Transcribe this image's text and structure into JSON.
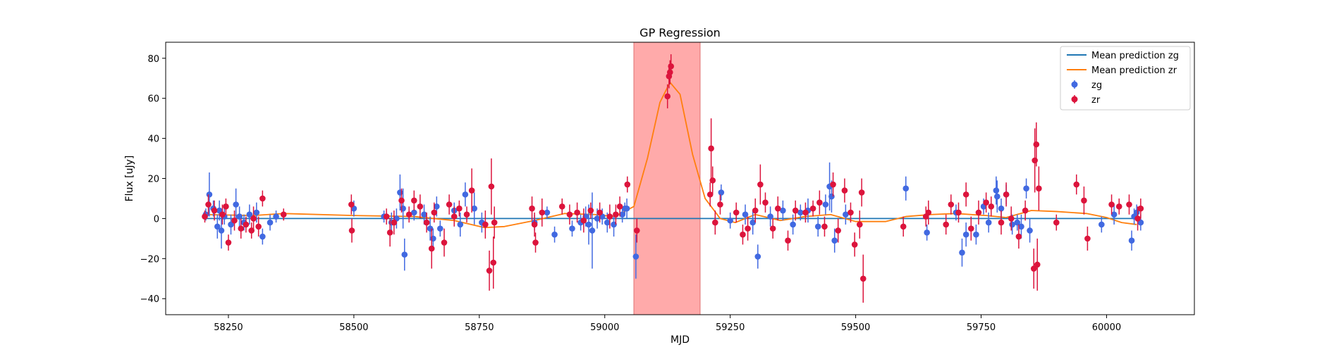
{
  "chart_data": {
    "type": "scatter",
    "title": "GP Regression",
    "xlabel": "MJD",
    "ylabel": "Flux [uJy]",
    "xlim": [
      58125,
      60175
    ],
    "ylim": [
      -48,
      88
    ],
    "xticks": [
      58250,
      58500,
      58750,
      59000,
      59250,
      59500,
      59750,
      60000
    ],
    "yticks": [
      -40,
      -20,
      0,
      20,
      40,
      60,
      80
    ],
    "grid": false,
    "legend_position": "top-right",
    "highlight_span": {
      "x": [
        59058,
        59190
      ],
      "color": "#ffaaaa"
    },
    "series": [
      {
        "name": "Mean prediction zg",
        "kind": "line",
        "color": "#1f77b4",
        "x": [
          58200,
          60060
        ],
        "y": [
          0,
          0
        ]
      },
      {
        "name": "Mean prediction zr",
        "kind": "line",
        "color": "#ff7f0e",
        "x": [
          58200,
          58300,
          58360,
          58500,
          58620,
          58700,
          58760,
          58800,
          58860,
          58920,
          58980,
          59020,
          59058,
          59085,
          59110,
          59130,
          59150,
          59175,
          59200,
          59230,
          59260,
          59300,
          59350,
          59400,
          59450,
          59500,
          59560,
          59600,
          59650,
          59700,
          59760,
          59800,
          59850,
          59900,
          59960,
          60000,
          60030,
          60060
        ],
        "y": [
          2.0,
          1.5,
          2.5,
          1.5,
          1.0,
          -1.0,
          -4.5,
          -4.0,
          -1.0,
          2.5,
          2.0,
          1.0,
          6.0,
          30.0,
          58.0,
          68.0,
          62.0,
          32.0,
          10.0,
          0.0,
          -2.0,
          2.0,
          -1.0,
          1.0,
          2.0,
          -1.5,
          -1.5,
          1.0,
          2.0,
          2.5,
          1.5,
          0.5,
          4.0,
          3.5,
          2.5,
          0.5,
          -2.0,
          -3.0
        ]
      },
      {
        "name": "zg",
        "kind": "errorbar",
        "color": "#4169e1",
        "points": [
          [
            58205,
            2,
            3
          ],
          [
            58212,
            12,
            11
          ],
          [
            58220,
            5,
            4
          ],
          [
            58228,
            -4,
            6
          ],
          [
            58232,
            4,
            5
          ],
          [
            58236,
            -6,
            9
          ],
          [
            58242,
            1,
            4
          ],
          [
            58255,
            -3,
            5
          ],
          [
            58265,
            7,
            8
          ],
          [
            58272,
            1,
            5
          ],
          [
            58281,
            -2,
            4
          ],
          [
            58292,
            2,
            5
          ],
          [
            58306,
            3,
            5
          ],
          [
            58318,
            -9,
            4
          ],
          [
            58333,
            -2,
            4
          ],
          [
            58345,
            1,
            3
          ],
          [
            58500,
            5,
            4
          ],
          [
            58560,
            1,
            3
          ],
          [
            58575,
            -2,
            5
          ],
          [
            58585,
            0,
            5
          ],
          [
            58592,
            13,
            9
          ],
          [
            58598,
            5,
            10
          ],
          [
            58601,
            -18,
            8
          ],
          [
            58620,
            3,
            4
          ],
          [
            58640,
            2,
            5
          ],
          [
            58652,
            -5,
            6
          ],
          [
            58658,
            -10,
            5
          ],
          [
            58665,
            6,
            5
          ],
          [
            58672,
            -5,
            4
          ],
          [
            58700,
            4,
            4
          ],
          [
            58712,
            -3,
            6
          ],
          [
            58722,
            12,
            6
          ],
          [
            58740,
            5,
            8
          ],
          [
            58755,
            -2,
            5
          ],
          [
            58860,
            -2,
            4
          ],
          [
            58885,
            3,
            3
          ],
          [
            58900,
            -8,
            4
          ],
          [
            58935,
            -5,
            4
          ],
          [
            58952,
            -2,
            4
          ],
          [
            58962,
            1,
            5
          ],
          [
            58968,
            -3,
            10
          ],
          [
            58975,
            -6,
            19
          ],
          [
            58985,
            0,
            5
          ],
          [
            58995,
            1,
            4
          ],
          [
            59005,
            -2,
            5
          ],
          [
            59018,
            -3,
            6
          ],
          [
            59035,
            2,
            4
          ],
          [
            59040,
            5,
            3
          ],
          [
            59044,
            5,
            5
          ],
          [
            59062,
            -19,
            11
          ],
          [
            59232,
            13,
            4
          ],
          [
            59250,
            -1,
            4
          ],
          [
            59280,
            2,
            5
          ],
          [
            59295,
            -2,
            6
          ],
          [
            59305,
            -19,
            6
          ],
          [
            59330,
            1,
            5
          ],
          [
            59355,
            4,
            5
          ],
          [
            59375,
            -3,
            5
          ],
          [
            59390,
            3,
            4
          ],
          [
            59405,
            4,
            6
          ],
          [
            59425,
            -4,
            5
          ],
          [
            59440,
            7,
            5
          ],
          [
            59448,
            16,
            12
          ],
          [
            59452,
            11,
            8
          ],
          [
            59458,
            -11,
            6
          ],
          [
            59480,
            2,
            5
          ],
          [
            59600,
            15,
            6
          ],
          [
            59642,
            -7,
            4
          ],
          [
            59700,
            3,
            4
          ],
          [
            59712,
            -17,
            7
          ],
          [
            59720,
            -8,
            6
          ],
          [
            59740,
            -8,
            5
          ],
          [
            59755,
            6,
            4
          ],
          [
            59765,
            -2,
            5
          ],
          [
            59780,
            14,
            7
          ],
          [
            59782,
            11,
            8
          ],
          [
            59790,
            5,
            5
          ],
          [
            59800,
            12,
            5
          ],
          [
            59812,
            -3,
            5
          ],
          [
            59822,
            -2,
            4
          ],
          [
            59830,
            -4,
            6
          ],
          [
            59840,
            15,
            5
          ],
          [
            59847,
            -6,
            6
          ],
          [
            59990,
            -3,
            4
          ],
          [
            60015,
            2,
            5
          ],
          [
            60050,
            -11,
            5
          ],
          [
            60055,
            1,
            4
          ],
          [
            60060,
            3,
            4
          ],
          [
            60068,
            -2,
            4
          ]
        ]
      },
      {
        "name": "zr",
        "kind": "errorbar",
        "color": "#dc143c",
        "points": [
          [
            58203,
            1,
            3
          ],
          [
            58210,
            7,
            5
          ],
          [
            58222,
            4,
            5
          ],
          [
            58238,
            2,
            5
          ],
          [
            58245,
            6,
            4
          ],
          [
            58250,
            -12,
            4
          ],
          [
            58262,
            -1,
            5
          ],
          [
            58275,
            -5,
            5
          ],
          [
            58285,
            -3,
            4
          ],
          [
            58296,
            -6,
            4
          ],
          [
            58300,
            0,
            6
          ],
          [
            58310,
            -4,
            5
          ],
          [
            58318,
            10,
            4
          ],
          [
            58360,
            2,
            3
          ],
          [
            58495,
            7,
            5
          ],
          [
            58496,
            -6,
            6
          ],
          [
            58565,
            1,
            4
          ],
          [
            58572,
            -7,
            7
          ],
          [
            58580,
            -2,
            6
          ],
          [
            58595,
            9,
            6
          ],
          [
            58610,
            2,
            4
          ],
          [
            58620,
            9,
            5
          ],
          [
            58632,
            6,
            6
          ],
          [
            58645,
            -2,
            5
          ],
          [
            58655,
            -15,
            10
          ],
          [
            58660,
            3,
            5
          ],
          [
            58680,
            -12,
            7
          ],
          [
            58690,
            7,
            5
          ],
          [
            58700,
            1,
            5
          ],
          [
            58710,
            5,
            4
          ],
          [
            58725,
            2,
            4
          ],
          [
            58735,
            14,
            11
          ],
          [
            58762,
            -3,
            7
          ],
          [
            58770,
            -26,
            10
          ],
          [
            58774,
            16,
            14
          ],
          [
            58778,
            -22,
            13
          ],
          [
            58780,
            -2,
            8
          ],
          [
            58855,
            5,
            6
          ],
          [
            58860,
            -3,
            6
          ],
          [
            58862,
            -12,
            5
          ],
          [
            58875,
            3,
            7
          ],
          [
            58915,
            6,
            4
          ],
          [
            58930,
            2,
            5
          ],
          [
            58945,
            3,
            5
          ],
          [
            58958,
            -1,
            6
          ],
          [
            58972,
            4,
            4
          ],
          [
            58990,
            3,
            5
          ],
          [
            59010,
            1,
            6
          ],
          [
            59022,
            2,
            5
          ],
          [
            59030,
            6,
            5
          ],
          [
            59045,
            17,
            4
          ],
          [
            59064,
            -6,
            6
          ],
          [
            59125,
            61,
            6
          ],
          [
            59128,
            71,
            6
          ],
          [
            59130,
            73,
            6
          ],
          [
            59132,
            76,
            6
          ],
          [
            59210,
            12,
            6
          ],
          [
            59212,
            35,
            15
          ],
          [
            59215,
            19,
            7
          ],
          [
            59220,
            -2,
            6
          ],
          [
            59230,
            7,
            5
          ],
          [
            59262,
            3,
            5
          ],
          [
            59275,
            -8,
            5
          ],
          [
            59285,
            -5,
            6
          ],
          [
            59300,
            4,
            6
          ],
          [
            59310,
            17,
            10
          ],
          [
            59320,
            8,
            5
          ],
          [
            59335,
            -5,
            5
          ],
          [
            59345,
            5,
            6
          ],
          [
            59365,
            -11,
            5
          ],
          [
            59380,
            4,
            5
          ],
          [
            59400,
            3,
            5
          ],
          [
            59415,
            5,
            4
          ],
          [
            59428,
            8,
            6
          ],
          [
            59438,
            -4,
            5
          ],
          [
            59455,
            17,
            6
          ],
          [
            59465,
            -6,
            6
          ],
          [
            59478,
            14,
            6
          ],
          [
            59490,
            3,
            5
          ],
          [
            59498,
            -13,
            6
          ],
          [
            59508,
            -3,
            7
          ],
          [
            59512,
            13,
            7
          ],
          [
            59515,
            -30,
            12
          ],
          [
            59595,
            -4,
            5
          ],
          [
            59640,
            1,
            5
          ],
          [
            59645,
            3,
            6
          ],
          [
            59680,
            -3,
            5
          ],
          [
            59690,
            7,
            5
          ],
          [
            59705,
            3,
            5
          ],
          [
            59720,
            12,
            6
          ],
          [
            59730,
            -5,
            6
          ],
          [
            59745,
            3,
            6
          ],
          [
            59760,
            8,
            5
          ],
          [
            59770,
            6,
            5
          ],
          [
            59790,
            -2,
            6
          ],
          [
            59800,
            12,
            6
          ],
          [
            59810,
            0,
            6
          ],
          [
            59825,
            -9,
            6
          ],
          [
            59838,
            4,
            5
          ],
          [
            59855,
            -25,
            10
          ],
          [
            59857,
            29,
            16
          ],
          [
            59860,
            37,
            11
          ],
          [
            59862,
            -23,
            13
          ],
          [
            59865,
            15,
            11
          ],
          [
            59900,
            -2,
            4
          ],
          [
            59940,
            17,
            5
          ],
          [
            59955,
            9,
            7
          ],
          [
            59962,
            -10,
            6
          ],
          [
            60010,
            7,
            5
          ],
          [
            60025,
            6,
            4
          ],
          [
            60045,
            7,
            5
          ],
          [
            60062,
            0,
            6
          ],
          [
            60068,
            5,
            5
          ]
        ]
      }
    ]
  }
}
